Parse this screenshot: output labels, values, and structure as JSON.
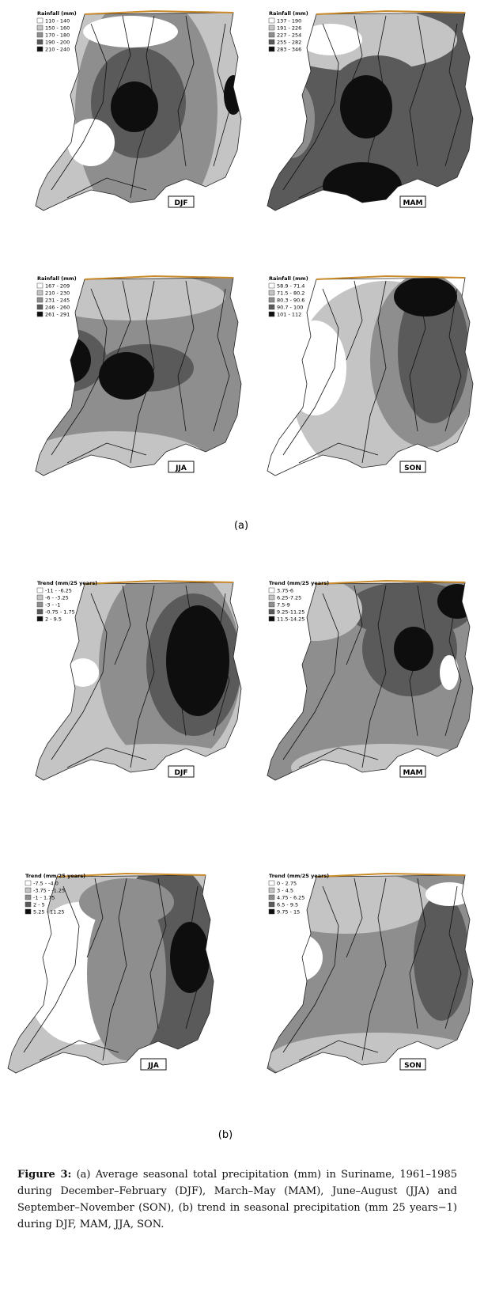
{
  "panels": [
    {
      "label": "(a)",
      "maps": [
        {
          "legend_title": "Rainfall (mm)",
          "legend": [
            "110 - 140",
            "150 - 160",
            "170 - 180",
            "190 - 200",
            "210 - 240"
          ],
          "season": "DJF"
        },
        {
          "legend_title": "Rainfall (mm)",
          "legend": [
            "137 - 190",
            "191 - 226",
            "227 - 254",
            "255 - 282",
            "283 - 346"
          ],
          "season": "MAM"
        },
        {
          "legend_title": "Rainfall (mm)",
          "legend": [
            "167 - 209",
            "210 - 230",
            "231 - 245",
            "246 - 260",
            "261 - 291"
          ],
          "season": "JJA"
        },
        {
          "legend_title": "Rainfall (mm)",
          "legend": [
            "58.9 - 71.4",
            "71.5 - 80.2",
            "80.3 - 90.6",
            "90.7 - 100",
            "101 - 112"
          ],
          "season": "SON"
        }
      ]
    },
    {
      "label": "(b)",
      "maps": [
        {
          "legend_title": "Trend (mm/25 years)",
          "legend": [
            "-11 - -6.25",
            "-6 - -3.25",
            "-3 - -1",
            "-0.75 - 1.75",
            "2 - 9.5"
          ],
          "season": "DJF"
        },
        {
          "legend_title": "Trend (mm/25 years)",
          "legend": [
            "3.75-6",
            "6.25-7.25",
            "7.5-9",
            "9.25-11.25",
            "11.5-14.25"
          ],
          "season": "MAM"
        },
        {
          "legend_title": "Trend (mm/25 years)",
          "legend": [
            "-7.5 - -4.0",
            "-3.75 - -1.25",
            "-1 - 1.75",
            "2 - 5",
            "5.25 - 11.25"
          ],
          "season": "JJA"
        },
        {
          "legend_title": "Trend (mm/25 years)",
          "legend": [
            "0 - 2.75",
            "3 - 4.5",
            "4.75 - 6.25",
            "6.5 - 9.5",
            "9.75 - 15"
          ],
          "season": "SON"
        }
      ]
    }
  ],
  "caption": {
    "label": "Figure 3:",
    "text": "(a) Average seasonal total precipitation (mm) in Suriname, 1961–1985 during December–February (DJF), March–May (MAM), June–August (JJA) and September–November (SON), (b) trend in seasonal precipitation (mm 25 years−1) during DJF, MAM, JJA, SON."
  }
}
